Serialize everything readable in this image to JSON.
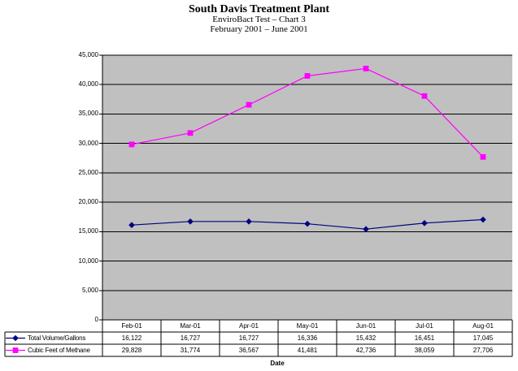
{
  "chart_data": {
    "type": "line",
    "title": "South Davis Treatment Plant",
    "subtitle": "EnviroBact Test – Chart 3",
    "period": "February 2001 – June 2001",
    "xlabel": "Date",
    "ylabel": "",
    "categories": [
      "Feb-01",
      "Mar-01",
      "Apr-01",
      "May-01",
      "Jun-01",
      "Jul-01",
      "Aug-01"
    ],
    "series": [
      {
        "name": "Total Volume/Gallons",
        "color": "#000080",
        "marker": "diamond",
        "values": [
          16122,
          16727,
          16727,
          16336,
          15432,
          16451,
          17045
        ],
        "labels": [
          "16,122",
          "16,727",
          "16,727",
          "16,336",
          "15,432",
          "16,451",
          "17,045"
        ]
      },
      {
        "name": "Cubic Feet of Methane",
        "color": "#FF00FF",
        "marker": "square",
        "values": [
          29828,
          31774,
          36567,
          41481,
          42736,
          38059,
          27706
        ],
        "labels": [
          "29,828",
          "31,774",
          "36,567",
          "41,481",
          "42,736",
          "38,059",
          "27,706"
        ]
      }
    ],
    "ylim": [
      0,
      45000
    ],
    "ytick_step": 5000,
    "ytick_labels": [
      "0",
      "5,000",
      "10,000",
      "15,000",
      "20,000",
      "25,000",
      "30,000",
      "35,000",
      "40,000",
      "45,000"
    ],
    "grid": true,
    "plot_bg": "#C0C0C0",
    "gridline_color": "#000000",
    "legend_position": "data-table-left"
  }
}
